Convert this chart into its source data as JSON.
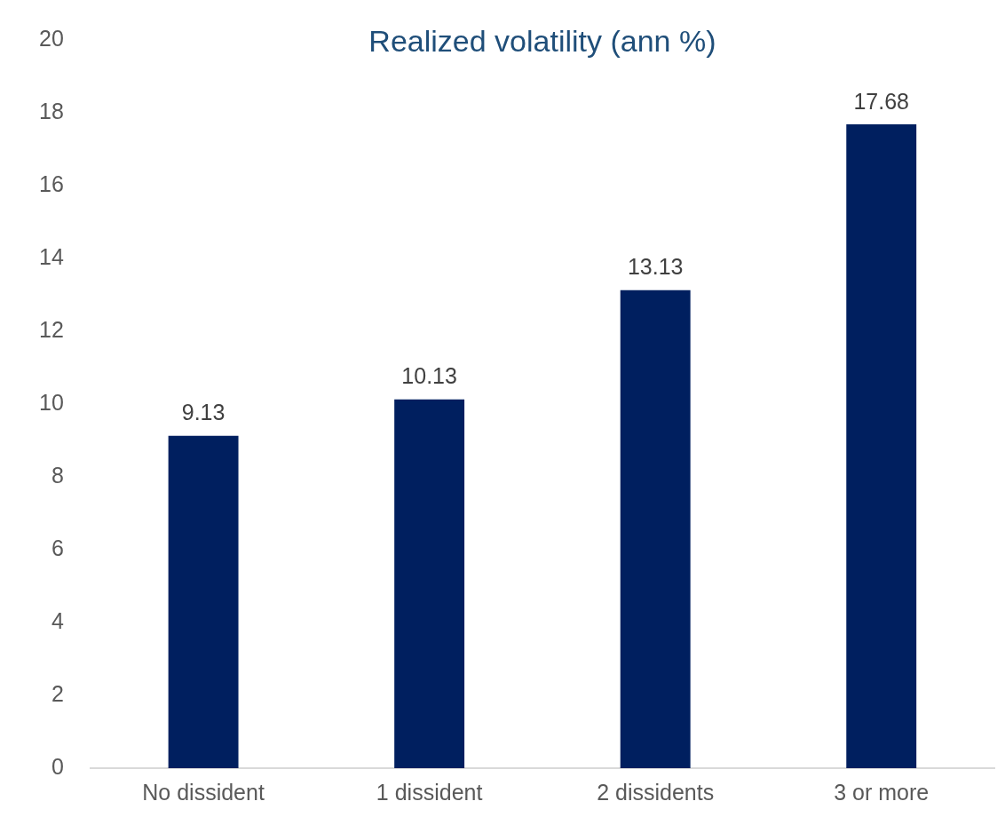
{
  "chart_data": {
    "type": "bar",
    "title": "Realized volatility (ann %)",
    "categories": [
      "No dissident",
      "1 dissident",
      "2 dissidents",
      "3 or more"
    ],
    "values": [
      9.13,
      10.13,
      13.13,
      17.68
    ],
    "color": "#001f5f",
    "ylim": [
      0,
      20
    ],
    "yticks": [
      0,
      2,
      4,
      6,
      8,
      10,
      12,
      14,
      16,
      18,
      20
    ],
    "grid": false,
    "data_labels": true
  }
}
